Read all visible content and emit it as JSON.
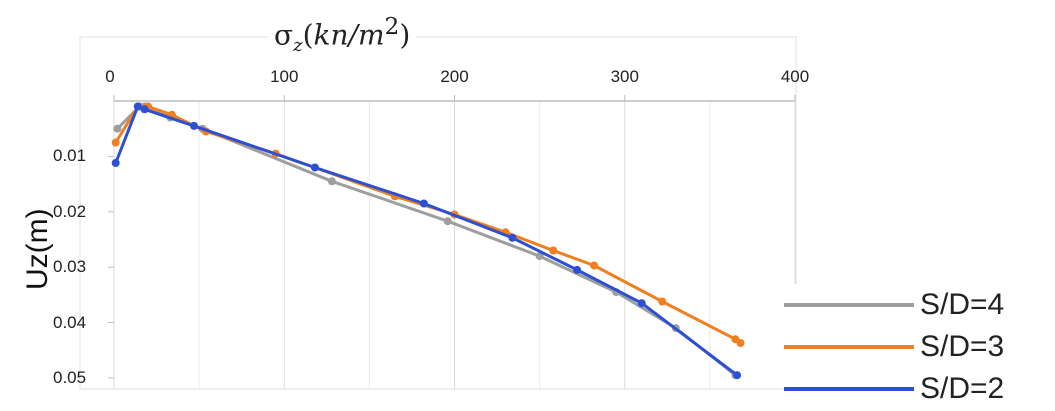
{
  "chart_data": {
    "type": "line",
    "title": "σz(kn/m2)",
    "title_parts": {
      "symbol": "σ",
      "sub": "z",
      "unit_base": "kn/m",
      "unit_sup": "2"
    },
    "xlabel": "σz(kn/m2)",
    "ylabel": "Uz(m)",
    "xlim": [
      0,
      400
    ],
    "ylim": [
      0.052,
      0
    ],
    "x_axis_position": "top",
    "y_axis_inverted": true,
    "x_ticks": [
      0,
      100,
      200,
      300,
      400
    ],
    "x_tick_labels": [
      "0",
      "100",
      "200",
      "300",
      "400"
    ],
    "y_ticks": [
      0.01,
      0.02,
      0.03,
      0.04,
      0.05
    ],
    "y_tick_labels": [
      "0.01",
      "0.02",
      "0.03",
      "0.04",
      "0.05"
    ],
    "grid": "vertical",
    "legend_position": "bottom-right",
    "series": [
      {
        "name": "S/D=4",
        "color": "#9e9e9e",
        "points": [
          [
            2,
            0.005
          ],
          [
            15,
            0.001
          ],
          [
            18,
            0.001
          ],
          [
            33,
            0.003
          ],
          [
            52,
            0.005
          ],
          [
            128,
            0.0145
          ],
          [
            196,
            0.0217
          ],
          [
            250,
            0.028
          ],
          [
            295,
            0.0345
          ],
          [
            330,
            0.041
          ],
          [
            365,
            0.0495
          ]
        ]
      },
      {
        "name": "S/D=3",
        "color": "#f07f20",
        "points": [
          [
            1,
            0.0075
          ],
          [
            14,
            0.001
          ],
          [
            20,
            0.001
          ],
          [
            34,
            0.0025
          ],
          [
            54,
            0.0055
          ],
          [
            95,
            0.0095
          ],
          [
            165,
            0.0172
          ],
          [
            200,
            0.0205
          ],
          [
            230,
            0.0237
          ],
          [
            258,
            0.027
          ],
          [
            282,
            0.0297
          ],
          [
            322,
            0.0362
          ],
          [
            365,
            0.043
          ],
          [
            368,
            0.0437
          ]
        ]
      },
      {
        "name": "S/D=2",
        "color": "#2d4fd1",
        "points": [
          [
            1,
            0.0112
          ],
          [
            14,
            0.001
          ],
          [
            18,
            0.0015
          ],
          [
            47,
            0.0045
          ],
          [
            118,
            0.012
          ],
          [
            182,
            0.0185
          ],
          [
            234,
            0.0247
          ],
          [
            272,
            0.0305
          ],
          [
            310,
            0.0365
          ],
          [
            366,
            0.0495
          ]
        ]
      }
    ]
  }
}
